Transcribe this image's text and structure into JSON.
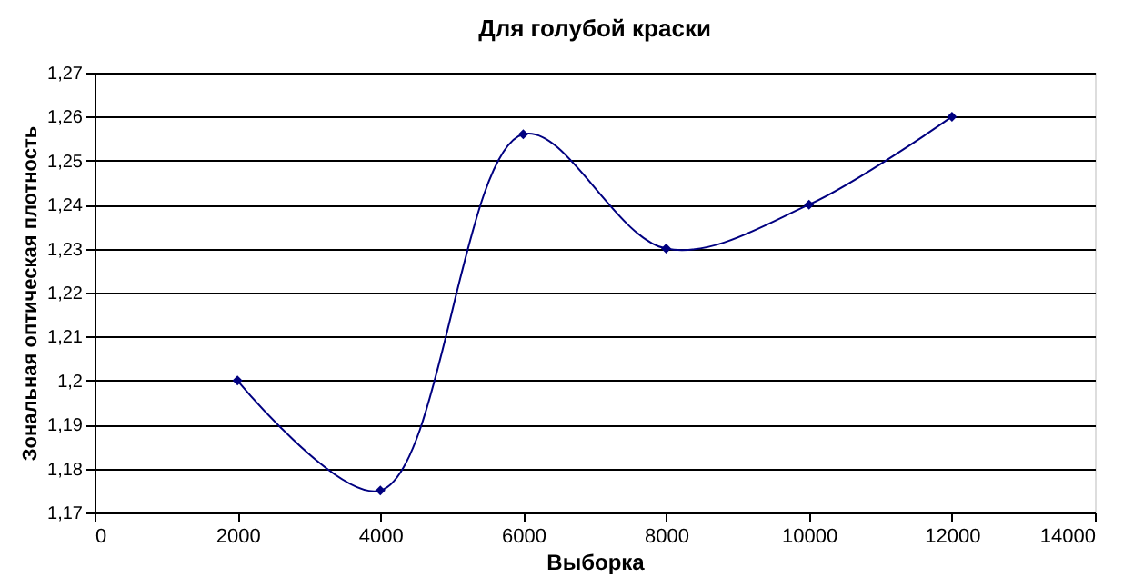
{
  "chart_data": {
    "type": "line",
    "title": "Для голубой краски",
    "xlabel": "Выборка",
    "ylabel": "Зональная оптическая плотность",
    "x": [
      2000,
      4000,
      6000,
      8000,
      10000,
      12000
    ],
    "series": [
      {
        "color": "#000080",
        "values": [
          1.2,
          1.175,
          1.256,
          1.23,
          1.24,
          1.26
        ]
      }
    ],
    "xlim": [
      0,
      14000
    ],
    "xticks": [
      0,
      2000,
      4000,
      6000,
      8000,
      10000,
      12000,
      14000
    ],
    "ylim": [
      1.17,
      1.27
    ],
    "yticks": [
      {
        "value": 1.17,
        "label": "1,17"
      },
      {
        "value": 1.18,
        "label": "1,18"
      },
      {
        "value": 1.19,
        "label": "1,19"
      },
      {
        "value": 1.2,
        "label": "1,2"
      },
      {
        "value": 1.21,
        "label": "1,21"
      },
      {
        "value": 1.22,
        "label": "1,22"
      },
      {
        "value": 1.23,
        "label": "1,23"
      },
      {
        "value": 1.24,
        "label": "1,24"
      },
      {
        "value": 1.25,
        "label": "1,25"
      },
      {
        "value": 1.26,
        "label": "1,26"
      },
      {
        "value": 1.27,
        "label": "1,27"
      }
    ],
    "grid": "y",
    "marker": "diamond",
    "line_style": "solid"
  }
}
